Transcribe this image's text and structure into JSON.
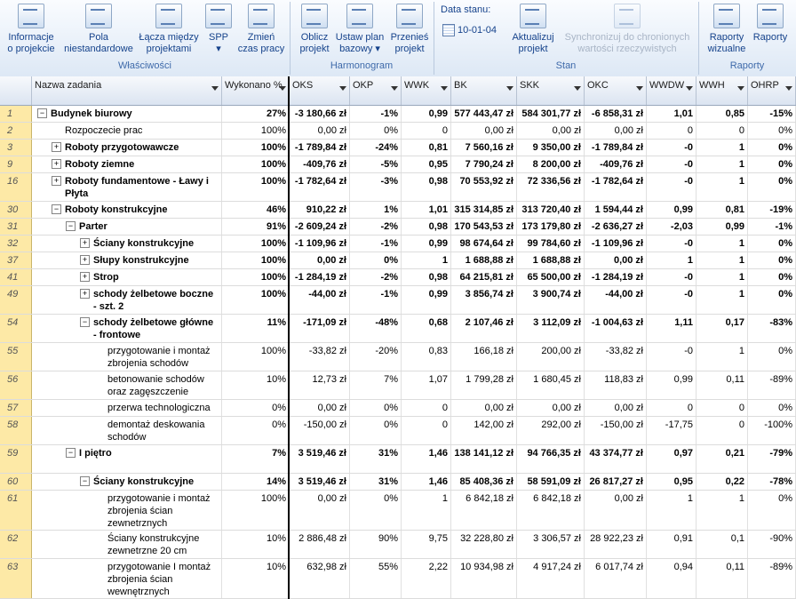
{
  "ribbon": {
    "buttons": [
      {
        "key": "info",
        "label": [
          "Informacje",
          "o projekcie"
        ]
      },
      {
        "key": "fields",
        "label": [
          "Pola",
          "niestandardowe"
        ]
      },
      {
        "key": "links",
        "label": [
          "Łącza między",
          "projektami"
        ]
      },
      {
        "key": "wbs",
        "label": [
          "SPP",
          "▾"
        ]
      },
      {
        "key": "worktime",
        "label": [
          "Zmień",
          "czas pracy"
        ]
      },
      {
        "key": "calc",
        "label": [
          "Oblicz",
          "projekt"
        ]
      },
      {
        "key": "baseline",
        "label": [
          "Ustaw plan",
          "bazowy ▾"
        ]
      },
      {
        "key": "move",
        "label": [
          "Przenieś",
          "projekt"
        ]
      },
      {
        "key": "update",
        "label": [
          "Aktualizuj",
          "projekt"
        ]
      },
      {
        "key": "sync",
        "label": [
          "Synchronizuj do chronionych",
          "wartości rzeczywistych"
        ]
      },
      {
        "key": "visual",
        "label": [
          "Raporty",
          "wizualne"
        ]
      },
      {
        "key": "reports",
        "label": [
          "Raporty",
          ""
        ]
      }
    ],
    "groups": {
      "properties": "Właściwości",
      "schedule": "Harmonogram",
      "status": "Stan",
      "reports": "Raporty"
    },
    "status_date_label": "Data stanu:",
    "status_date_value": "10-01-04"
  },
  "columns": [
    "",
    "Nazwa zadania",
    "Wykonano %",
    "OKS",
    "OKP",
    "WWK",
    "BK",
    "SKK",
    "OKC",
    "WWDW",
    "WWH",
    "OHRP"
  ],
  "rows": [
    {
      "id": "1",
      "level": 0,
      "toggle": "−",
      "name": "Budynek biurowy",
      "bold": true,
      "h": 19,
      "v": [
        "27%",
        "-3 180,66 zł",
        "-1%",
        "0,99",
        "577 443,47 zł",
        "584 301,77 zł",
        "-6 858,31 zł",
        "1,01",
        "0,85",
        "-15%"
      ]
    },
    {
      "id": "2",
      "level": 1,
      "toggle": "",
      "name": "Rozpoczecie prac",
      "bold": false,
      "h": 19,
      "v": [
        "100%",
        "0,00 zł",
        "0%",
        "0",
        "0,00 zł",
        "0,00 zł",
        "0,00 zł",
        "0",
        "0",
        "0%"
      ]
    },
    {
      "id": "3",
      "level": 1,
      "toggle": "+",
      "name": "Roboty przygotowawcze",
      "bold": true,
      "h": 19,
      "v": [
        "100%",
        "-1 789,84 zł",
        "-24%",
        "0,81",
        "7 560,16 zł",
        "9 350,00 zł",
        "-1 789,84 zł",
        "-0",
        "1",
        "0%"
      ]
    },
    {
      "id": "9",
      "level": 1,
      "toggle": "+",
      "name": "Roboty ziemne",
      "bold": true,
      "h": 19,
      "v": [
        "100%",
        "-409,76 zł",
        "-5%",
        "0,95",
        "7 790,24 zł",
        "8 200,00 zł",
        "-409,76 zł",
        "-0",
        "1",
        "0%"
      ]
    },
    {
      "id": "16",
      "level": 1,
      "toggle": "+",
      "name": "Roboty fundamentowe - Ławy i Płyta",
      "bold": true,
      "h": 32,
      "v": [
        "100%",
        "-1 782,64 zł",
        "-3%",
        "0,98",
        "70 553,92 zł",
        "72 336,56 zł",
        "-1 782,64 zł",
        "-0",
        "1",
        "0%"
      ]
    },
    {
      "id": "30",
      "level": 1,
      "toggle": "−",
      "name": "Roboty konstrukcyjne",
      "bold": true,
      "h": 19,
      "v": [
        "46%",
        "910,22 zł",
        "1%",
        "1,01",
        "315 314,85 zł",
        "313 720,40 zł",
        "1 594,44 zł",
        "0,99",
        "0,81",
        "-19%"
      ]
    },
    {
      "id": "31",
      "level": 2,
      "toggle": "−",
      "name": "Parter",
      "bold": true,
      "h": 19,
      "v": [
        "91%",
        "-2 609,24 zł",
        "-2%",
        "0,98",
        "170 543,53 zł",
        "173 179,80 zł",
        "-2 636,27 zł",
        "-2,03",
        "0,99",
        "-1%"
      ]
    },
    {
      "id": "32",
      "level": 3,
      "toggle": "+",
      "name": "Ściany konstrukcyjne",
      "bold": true,
      "h": 19,
      "v": [
        "100%",
        "-1 109,96 zł",
        "-1%",
        "0,99",
        "98 674,64 zł",
        "99 784,60 zł",
        "-1 109,96 zł",
        "-0",
        "1",
        "0%"
      ]
    },
    {
      "id": "37",
      "level": 3,
      "toggle": "+",
      "name": "Słupy konstrukcyjne",
      "bold": true,
      "h": 19,
      "v": [
        "100%",
        "0,00 zł",
        "0%",
        "1",
        "1 688,88 zł",
        "1 688,88 zł",
        "0,00 zł",
        "1",
        "1",
        "0%"
      ]
    },
    {
      "id": "41",
      "level": 3,
      "toggle": "+",
      "name": "Strop",
      "bold": true,
      "h": 19,
      "v": [
        "100%",
        "-1 284,19 zł",
        "-2%",
        "0,98",
        "64 215,81 zł",
        "65 500,00 zł",
        "-1 284,19 zł",
        "-0",
        "1",
        "0%"
      ]
    },
    {
      "id": "49",
      "level": 3,
      "toggle": "+",
      "name": "schody żelbetowe boczne - szt. 2",
      "bold": true,
      "h": 32,
      "v": [
        "100%",
        "-44,00 zł",
        "-1%",
        "0,99",
        "3 856,74 zł",
        "3 900,74 zł",
        "-44,00 zł",
        "-0",
        "1",
        "0%"
      ]
    },
    {
      "id": "54",
      "level": 3,
      "toggle": "−",
      "name": "schody żelbetowe główne - frontowe",
      "bold": true,
      "h": 32,
      "v": [
        "11%",
        "-171,09 zł",
        "-48%",
        "0,68",
        "2 107,46 zł",
        "3 112,09 zł",
        "-1 004,63 zł",
        "1,11",
        "0,17",
        "-83%"
      ]
    },
    {
      "id": "55",
      "level": 4,
      "toggle": "",
      "name": "przygotowanie i montaż zbrojenia schodów",
      "bold": false,
      "h": 32,
      "v": [
        "100%",
        "-33,82 zł",
        "-20%",
        "0,83",
        "166,18 zł",
        "200,00 zł",
        "-33,82 zł",
        "-0",
        "1",
        "0%"
      ]
    },
    {
      "id": "56",
      "level": 4,
      "toggle": "",
      "name": "betonowanie schodów oraz zagęszczenie betonu",
      "bold": false,
      "h": 32,
      "v": [
        "10%",
        "12,73 zł",
        "7%",
        "1,07",
        "1 799,28 zł",
        "1 680,45 zł",
        "118,83 zł",
        "0,99",
        "0,11",
        "-89%"
      ]
    },
    {
      "id": "57",
      "level": 4,
      "toggle": "",
      "name": "przerwa technologiczna",
      "bold": false,
      "h": 19,
      "v": [
        "0%",
        "0,00 zł",
        "0%",
        "0",
        "0,00 zł",
        "0,00 zł",
        "0,00 zł",
        "0",
        "0",
        "0%"
      ]
    },
    {
      "id": "58",
      "level": 4,
      "toggle": "",
      "name": "demontaż deskowania schodów",
      "bold": false,
      "h": 32,
      "v": [
        "0%",
        "-150,00 zł",
        "0%",
        "0",
        "142,00 zł",
        "292,00 zł",
        "-150,00 zł",
        "-17,75",
        "0",
        "-100%"
      ]
    },
    {
      "id": "59",
      "level": 2,
      "toggle": "−",
      "name": "I piętro",
      "bold": true,
      "h": 32,
      "v": [
        "7%",
        "3 519,46 zł",
        "31%",
        "1,46",
        "138 141,12 zł",
        "94 766,35 zł",
        "43 374,77 zł",
        "0,97",
        "0,21",
        "-79%"
      ]
    },
    {
      "id": "60",
      "level": 3,
      "toggle": "−",
      "name": "Ściany konstrukcyjne",
      "bold": true,
      "h": 19,
      "v": [
        "14%",
        "3 519,46 zł",
        "31%",
        "1,46",
        "85 408,36 zł",
        "58 591,09 zł",
        "26 817,27 zł",
        "0,95",
        "0,22",
        "-78%"
      ]
    },
    {
      "id": "61",
      "level": 4,
      "toggle": "",
      "name": "przygotowanie i montaż zbrojenia ścian zewnetrznych",
      "bold": false,
      "h": 45,
      "v": [
        "100%",
        "0,00 zł",
        "0%",
        "1",
        "6 842,18 zł",
        "6 842,18 zł",
        "0,00 zł",
        "1",
        "1",
        "0%"
      ]
    },
    {
      "id": "62",
      "level": 4,
      "toggle": "",
      "name": "Ściany konstrukcyjne zewnetrzne 20 cm",
      "bold": false,
      "h": 32,
      "v": [
        "10%",
        "2 886,48 zł",
        "90%",
        "9,75",
        "32 228,80 zł",
        "3 306,57 zł",
        "28 922,23 zł",
        "0,91",
        "0,1",
        "-90%"
      ]
    },
    {
      "id": "63",
      "level": 4,
      "toggle": "",
      "name": "przygotowanie I montaż zbrojenia ścian wewnętrznych",
      "bold": false,
      "h": 45,
      "v": [
        "10%",
        "632,98 zł",
        "55%",
        "2,22",
        "10 934,98 zł",
        "4 917,24 zł",
        "6 017,74 zł",
        "0,94",
        "0,11",
        "-89%"
      ]
    }
  ]
}
